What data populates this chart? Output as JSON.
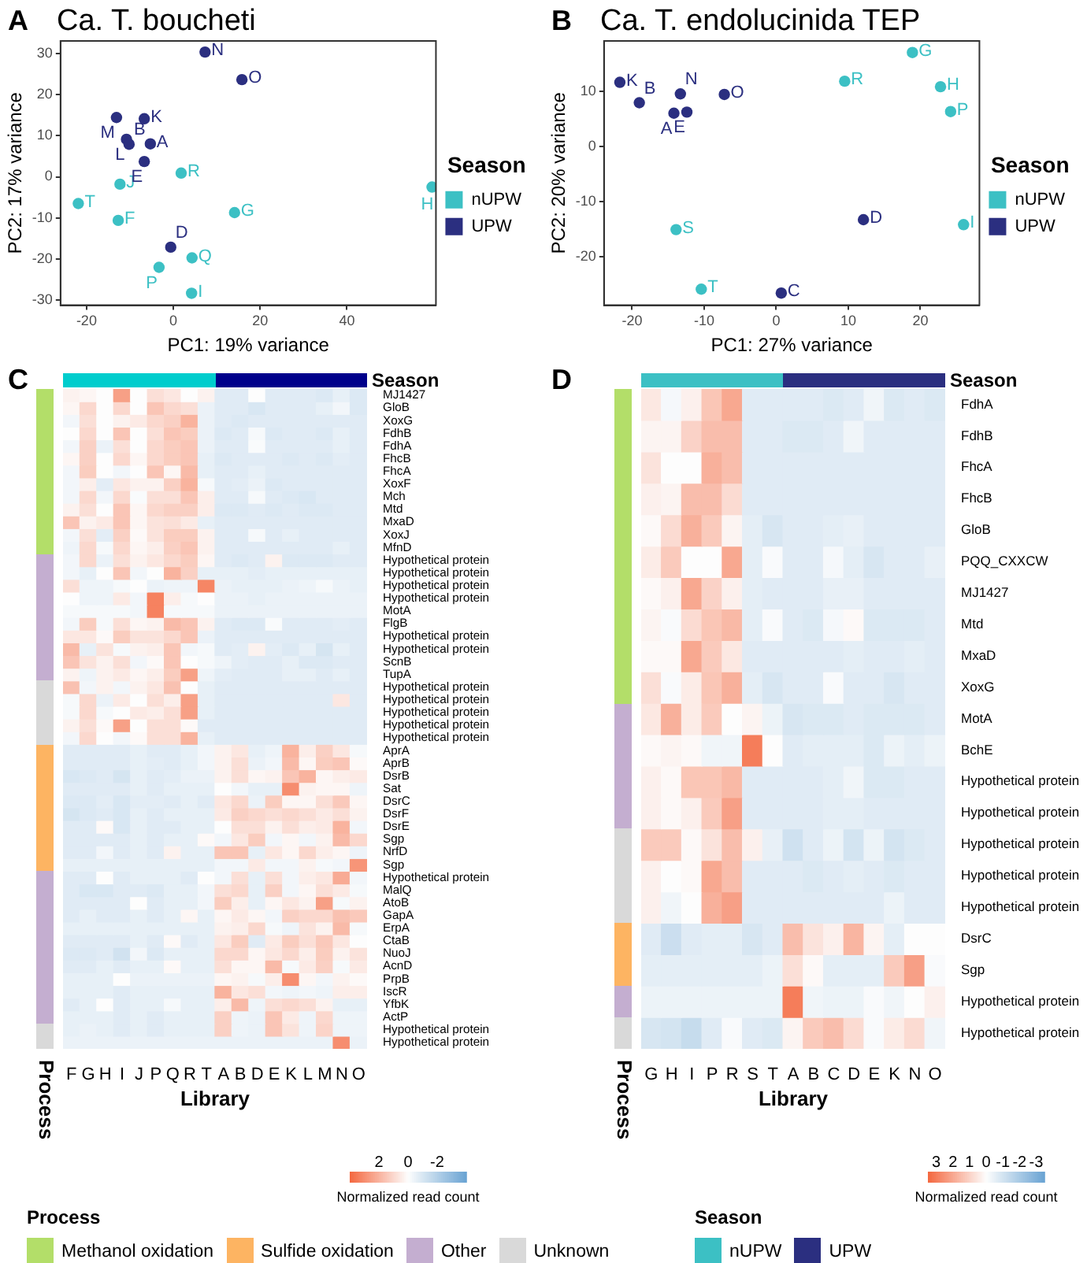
{
  "chart_data": [
    {
      "type": "scatter",
      "title": "Ca. T. boucheti",
      "annotations": [
        "A",
        {
          "text": "R",
          "x": 1.8,
          "y": 0.9
        },
        {
          "text": "J",
          "x": -12.3,
          "y": -1.8
        },
        {
          "text": "T",
          "x": -21.9,
          "y": -6.5
        },
        {
          "text": "F",
          "x": -12.7,
          "y": -10.6
        },
        {
          "text": "G",
          "x": 14.1,
          "y": -8.7
        },
        {
          "text": "H",
          "x": 59.6,
          "y": -2.5
        },
        {
          "text": "Q",
          "x": 4.3,
          "y": -19.7
        },
        {
          "text": "P",
          "x": -3.3,
          "y": -22
        },
        {
          "text": "I",
          "x": 4.2,
          "y": -28.3
        },
        {
          "text": "N",
          "x": 7.3,
          "y": 30.3
        },
        {
          "text": "O",
          "x": 15.8,
          "y": 23.6
        },
        {
          "text": "M",
          "x": -13.1,
          "y": 14.4
        },
        {
          "text": "K",
          "x": -6.7,
          "y": 14.1
        },
        {
          "text": "L",
          "x": -10.8,
          "y": 9.1
        },
        {
          "text": "B",
          "x": -10.2,
          "y": 7.9
        },
        {
          "text": "A",
          "x": -5.3,
          "y": 8
        },
        {
          "text": "E",
          "x": -6.7,
          "y": 3.7
        },
        {
          "text": "D",
          "x": -0.6,
          "y": -17.1
        }
      ],
      "xlabel": "PC1: 19% variance",
      "ylabel": "PC2: 17% variance",
      "legend": "right",
      "legend_title": "Season",
      "xlim": [
        -26,
        60.5
      ],
      "ylim": [
        -31.2,
        33
      ],
      "xticks": [
        -20,
        0,
        20,
        40
      ],
      "yticks": [
        -30,
        -20,
        -10,
        0,
        10,
        20,
        30
      ],
      "marker": "circle",
      "series": [
        {
          "name": "nUPW",
          "color": "#3cc0c4",
          "x": [
            1.8,
            -12.3,
            -21.9,
            -12.7,
            14.1,
            59.6,
            4.3,
            -3.3,
            4.2
          ],
          "values": [
            0.9,
            -1.8,
            -6.5,
            -10.6,
            -8.7,
            -2.5,
            -19.7,
            -22,
            -28.3
          ]
        },
        {
          "name": "UPW",
          "color": "#2b2f80",
          "x": [
            7.3,
            15.8,
            -13.1,
            -6.7,
            -10.8,
            -10.2,
            -5.3,
            -6.7,
            -0.6
          ],
          "values": [
            30.3,
            23.6,
            14.4,
            14.1,
            9.1,
            7.9,
            8,
            3.7,
            -17.1
          ]
        }
      ]
    },
    {
      "type": "scatter",
      "title": "Ca. T. endolucinida TEP",
      "annotations": [
        "B",
        {
          "text": "G",
          "x": 18.9,
          "y": 17
        },
        {
          "text": "R",
          "x": 9.5,
          "y": 11.8
        },
        {
          "text": "H",
          "x": 22.8,
          "y": 10.8
        },
        {
          "text": "P",
          "x": 24.2,
          "y": 6.3
        },
        {
          "text": "I",
          "x": 26,
          "y": -14.2
        },
        {
          "text": "S",
          "x": -13.9,
          "y": -15.1
        },
        {
          "text": "T",
          "x": -10.4,
          "y": -25.9
        },
        {
          "text": "K",
          "x": -21.7,
          "y": 11.6
        },
        {
          "text": "B",
          "x": -19,
          "y": 7.9
        },
        {
          "text": "N",
          "x": -13.3,
          "y": 9.5
        },
        {
          "text": "O",
          "x": -7.2,
          "y": 9.4
        },
        {
          "text": "A",
          "x": -14.2,
          "y": 6
        },
        {
          "text": "E",
          "x": -12.4,
          "y": 6.2
        },
        {
          "text": "D",
          "x": 12.1,
          "y": -13.3
        },
        {
          "text": "C",
          "x": 0.7,
          "y": -26.6
        }
      ],
      "xlabel": "PC1: 27% variance",
      "ylabel": "PC2: 20% variance",
      "legend": "right",
      "legend_title": "Season",
      "xlim": [
        -23.9,
        28.2
      ],
      "ylim": [
        -28.8,
        19.1
      ],
      "xticks": [
        -20,
        -10,
        0,
        10,
        20
      ],
      "yticks": [
        -20,
        -10,
        0,
        10
      ],
      "marker": "circle",
      "series": [
        {
          "name": "nUPW",
          "color": "#3cc0c4",
          "x": [
            18.9,
            9.5,
            22.8,
            24.2,
            26,
            -13.9,
            -10.4
          ],
          "values": [
            17,
            11.8,
            10.8,
            6.3,
            -14.2,
            -15.1,
            -25.9
          ]
        },
        {
          "name": "UPW",
          "color": "#2b2f80",
          "x": [
            -21.7,
            -19,
            -13.3,
            -7.2,
            -14.2,
            -12.4,
            12.1,
            0.7
          ],
          "values": [
            11.6,
            7.9,
            9.5,
            9.4,
            6,
            6.2,
            -13.3,
            -26.6
          ]
        }
      ]
    },
    {
      "type": "heatmap",
      "annotations": [
        "C",
        "Process",
        "Season"
      ],
      "xlabel": "Library",
      "clim": [
        4,
        -4
      ],
      "cticks": [
        2,
        0,
        -2
      ],
      "clabel": "Normalized read count\n(Z-score)",
      "categories": [
        "F",
        "G",
        "H",
        "I",
        "J",
        "P",
        "Q",
        "R",
        "T",
        "A",
        "B",
        "D",
        "E",
        "K",
        "L",
        "M",
        "N",
        "O"
      ],
      "y_categories": [
        "MJ1427",
        "GloB",
        "XoxG",
        "FdhB",
        "FdhA",
        "FhcB",
        "FhcA",
        "XoxF",
        "Mch",
        "Mtd",
        "MxaD",
        "XoxJ",
        "MfnD",
        "Hypothetical protein",
        "Hypothetical protein",
        "Hypothetical protein",
        "Hypothetical protein",
        "MotA",
        "FlgB",
        "Hypothetical protein",
        "Hypothetical protein",
        "ScnB",
        "TupA",
        "Hypothetical protein",
        "Hypothetical protein",
        "Hypothetical protein",
        "Hypothetical protein",
        "Hypothetical protein",
        "AprA",
        "AprB",
        "DsrB",
        "Sat",
        "DsrC",
        "DsrF",
        "DsrE",
        "Sgp",
        "NrfD",
        "Sgp",
        "Hypothetical protein",
        "MalQ",
        "AtoB",
        "GapA",
        "ErpA",
        "CtaB",
        "NuoJ",
        "AcnD",
        "PrpB",
        "IscR",
        "YfbK",
        "ActP",
        "Hypothetical protein",
        "Hypothetical protein"
      ],
      "cells": [
        [
          0.3,
          0.2,
          0,
          2.5,
          0,
          0.8,
          0.6,
          0,
          0.3,
          -0.8,
          -0.8,
          0,
          -0.8,
          -0.8,
          -0.8,
          -0.9,
          -0.6,
          -0.9
        ],
        [
          0.2,
          1,
          0,
          1,
          0,
          1.5,
          1,
          0.8,
          -0.5,
          -0.8,
          -0.8,
          -1,
          -0.8,
          -0.8,
          -0.8,
          -0.6,
          -0.3,
          -0.9
        ],
        [
          -0.3,
          0.8,
          0,
          0.3,
          0.5,
          1,
          1.2,
          2,
          -0.5,
          -0.8,
          -0.9,
          -0.8,
          -0.8,
          -0.8,
          -0.8,
          -0.8,
          -0.8,
          -0.8
        ],
        [
          0,
          1,
          0,
          1.5,
          0,
          0.8,
          1.5,
          1.3,
          -0.5,
          -0.9,
          -0.8,
          -0.2,
          -0.9,
          -0.8,
          -0.8,
          -0.9,
          -0.6,
          -0.8
        ],
        [
          -0.3,
          1.2,
          -0.5,
          0.8,
          0,
          1,
          1.3,
          1.5,
          -0.5,
          -0.8,
          -0.8,
          -0.1,
          -0.8,
          -0.8,
          -0.8,
          -0.8,
          -0.6,
          -0.8
        ],
        [
          0.2,
          1.2,
          0,
          1,
          0.2,
          1,
          1.3,
          1.5,
          -0.6,
          -0.9,
          -0.8,
          -0.8,
          -0.8,
          -0.9,
          -0.8,
          -0.9,
          -0.7,
          -0.8
        ],
        [
          -0.3,
          1.3,
          0,
          -0.3,
          0,
          1.5,
          0.2,
          1.8,
          -0.6,
          -0.8,
          -0.8,
          -0.6,
          -0.8,
          -0.8,
          -0.8,
          -0.8,
          -0.8,
          -0.8
        ],
        [
          -0.3,
          0.4,
          -0.7,
          0.6,
          0.3,
          0.3,
          1.2,
          2,
          -0.2,
          -0.8,
          -0.7,
          -0.5,
          -0.9,
          -0.8,
          -0.8,
          -0.8,
          -0.8,
          -0.8
        ],
        [
          -0.3,
          1,
          -0.3,
          1,
          -0.1,
          0.8,
          0.8,
          1.5,
          0.4,
          -0.8,
          -0.8,
          -0.2,
          -0.8,
          -0.9,
          -1,
          -0.8,
          -0.8,
          -0.8
        ],
        [
          0.3,
          0.8,
          0,
          1.5,
          0.2,
          1,
          1.2,
          1.2,
          0.4,
          -0.9,
          -0.9,
          -0.8,
          -0.9,
          -0.8,
          -0.9,
          -0.9,
          -0.8,
          -0.8
        ],
        [
          1.5,
          0.3,
          0.5,
          1.5,
          0.2,
          0.7,
          0.8,
          0.5,
          -0.6,
          -0.8,
          -0.8,
          -0.8,
          -0.8,
          -0.8,
          -0.8,
          -0.8,
          -0.8,
          -0.8
        ],
        [
          -0.3,
          0.8,
          -0.7,
          1.2,
          0.1,
          0.7,
          1.3,
          1.3,
          0.3,
          -0.8,
          -0.8,
          -0.2,
          -0.8,
          -0.6,
          -0.8,
          -0.8,
          -0.8,
          -0.8
        ],
        [
          -0.4,
          1,
          -0.2,
          1,
          0.2,
          0.4,
          1.2,
          1.5,
          0.3,
          -0.8,
          -0.8,
          -0.8,
          -0.8,
          -0.8,
          -0.8,
          -0.8,
          -0.6,
          -0.8
        ],
        [
          -0.3,
          1,
          -0.5,
          0.8,
          0.3,
          0.6,
          1,
          1.3,
          0.2,
          -0.8,
          -0.9,
          -0.8,
          0.3,
          -0.9,
          -0.9,
          -0.9,
          -0.8,
          -0.8
        ],
        [
          -0.3,
          -0.6,
          0,
          1.5,
          -0.3,
          0,
          2,
          1.2,
          -0.6,
          -0.6,
          -0.6,
          -0.7,
          -0.6,
          -0.6,
          -0.6,
          -0.6,
          -0.6,
          -0.6
        ],
        [
          0.8,
          -0.4,
          -0.4,
          -0.2,
          0,
          -0.5,
          -0.4,
          -0.4,
          3.2,
          -0.5,
          -0.6,
          -0.6,
          -0.6,
          -0.5,
          -0.4,
          -0.2,
          -0.5,
          -0.6
        ],
        [
          0,
          -0.4,
          -0.4,
          0.5,
          -0.3,
          3.3,
          0.4,
          -0.2,
          0,
          -0.5,
          -0.5,
          -0.6,
          -0.5,
          -0.5,
          -0.5,
          -0.5,
          -0.5,
          -0.5
        ],
        [
          -0.2,
          -0.2,
          -0.2,
          -0.2,
          -0.3,
          3.3,
          -0.2,
          -0.2,
          -0.2,
          -0.5,
          -0.5,
          -0.5,
          -0.5,
          -0.5,
          -0.5,
          -0.5,
          -0.5,
          -0.5
        ],
        [
          -0.3,
          1.3,
          -0.2,
          0.8,
          0.2,
          0.3,
          1.8,
          1.5,
          0.3,
          -0.8,
          -0.9,
          -0.9,
          -0.1,
          -0.8,
          -0.8,
          -0.8,
          -0.7,
          -0.8
        ],
        [
          0.6,
          0.6,
          0.1,
          1.3,
          0.7,
          0.7,
          1,
          1.5,
          -0.5,
          -0.8,
          -0.8,
          -0.8,
          -0.8,
          -0.8,
          -0.8,
          -0.8,
          -0.8,
          -0.8
        ],
        [
          1.8,
          -0.6,
          0.7,
          -0.2,
          0.3,
          0.4,
          1.5,
          -0.3,
          -0.2,
          -0.8,
          -0.7,
          0.3,
          -0.7,
          -0.9,
          -0.6,
          -1.1,
          -0.6,
          -0.8
        ],
        [
          1.5,
          0.7,
          0.3,
          0.8,
          -0.3,
          0.1,
          1.5,
          0,
          -0.2,
          -0.4,
          -0.7,
          -0.8,
          -0.8,
          -0.6,
          -0.9,
          -0.9,
          -0.8,
          -0.8
        ],
        [
          0.3,
          -0.4,
          0.3,
          0.5,
          0.2,
          0.4,
          1.3,
          2.5,
          -0.4,
          -0.7,
          -0.8,
          -0.8,
          -0.8,
          -0.6,
          -0.6,
          -0.8,
          -0.6,
          -0.8
        ],
        [
          1.6,
          -0.3,
          0.3,
          -0.3,
          0.3,
          0.6,
          1.6,
          0,
          -0.6,
          -0.8,
          -0.8,
          -0.8,
          -0.8,
          -0.8,
          -0.8,
          -0.8,
          -0.8,
          -0.8
        ],
        [
          -0.2,
          1,
          -0.5,
          0.5,
          0,
          0.8,
          0.4,
          2.5,
          -0.6,
          -0.8,
          -0.8,
          -0.8,
          -0.8,
          -0.8,
          -0.8,
          -0.8,
          0.6,
          -0.8
        ],
        [
          -0.2,
          1,
          -0.2,
          0,
          0.5,
          0.4,
          0.8,
          2.5,
          -0.6,
          -0.8,
          -0.8,
          -0.8,
          -0.8,
          -0.8,
          -0.8,
          -0.8,
          -0.8,
          -0.8
        ],
        [
          0.3,
          0.8,
          0.1,
          2.5,
          0,
          0.8,
          0.8,
          0.1,
          -0.8,
          -0.8,
          -0.8,
          -0.8,
          -0.8,
          -0.8,
          -0.8,
          -0.8,
          -0.8,
          -0.8
        ],
        [
          -0.3,
          1,
          0,
          -0.3,
          0.1,
          0.8,
          0.8,
          2,
          -0.6,
          -0.8,
          -0.8,
          -0.8,
          -0.8,
          -0.8,
          -0.8,
          -0.8,
          -0.8,
          -0.8
        ],
        [
          -0.8,
          -0.8,
          -0.8,
          -0.8,
          -0.6,
          -0.8,
          -0.8,
          -0.6,
          -0.3,
          0.3,
          0.6,
          -0.6,
          -0.4,
          2,
          0.4,
          1.2,
          0.6,
          -0.2
        ],
        [
          -0.8,
          -0.8,
          -0.8,
          -0.8,
          -0.6,
          -0.7,
          -0.8,
          -0.6,
          -0.3,
          0.3,
          0.8,
          -0.5,
          -0.3,
          1.8,
          0.2,
          1.3,
          1.5,
          0.1
        ],
        [
          -1,
          -0.9,
          -0.8,
          -1.1,
          -0.6,
          -0.8,
          -0.7,
          -0.5,
          -0.5,
          0.3,
          0.8,
          0.2,
          0.3,
          1.5,
          2,
          0.2,
          0.4,
          0.5
        ],
        [
          -0.8,
          -0.8,
          -0.8,
          -0.8,
          -0.6,
          -0.8,
          -0.6,
          -0.6,
          -0.6,
          0,
          -0.3,
          -0.6,
          -0.6,
          3,
          0.3,
          0.2,
          0.2,
          -0.4
        ],
        [
          -0.9,
          -0.9,
          -0.7,
          -1,
          -0.7,
          -0.7,
          -0.8,
          -0.6,
          -0.8,
          0.6,
          1,
          -0.5,
          1.3,
          0.2,
          0.2,
          0.8,
          1.4,
          0.2
        ],
        [
          -1.1,
          -0.9,
          -0.8,
          -1,
          -0.6,
          -0.8,
          -0.6,
          -0.6,
          -0.6,
          0.5,
          1.2,
          1,
          0.8,
          1,
          0.8,
          0.5,
          0.8,
          0.3
        ],
        [
          -0.8,
          -0.8,
          0.1,
          -1,
          -0.6,
          -0.8,
          -0.8,
          -0.6,
          -0.6,
          0,
          0.8,
          0.8,
          0.3,
          0.8,
          0.4,
          0.5,
          2,
          -0.3
        ],
        [
          -0.8,
          -0.8,
          -0.8,
          -0.8,
          -0.6,
          -0.8,
          -0.6,
          -0.6,
          0.1,
          -0.3,
          0.6,
          1.3,
          -0.3,
          0.2,
          -0.3,
          0.3,
          1.8,
          1
        ],
        [
          -0.8,
          -0.8,
          -0.3,
          -0.8,
          -0.6,
          -0.8,
          0.3,
          -0.6,
          -0.6,
          1.5,
          1.5,
          -0.6,
          0.6,
          0.2,
          1,
          0.4,
          0.2,
          -0.4
        ],
        [
          -0.6,
          -0.6,
          -0.6,
          -0.6,
          -0.6,
          -0.6,
          -0.6,
          -0.6,
          -0.6,
          -0.3,
          -0.3,
          0.5,
          -0.3,
          -0.3,
          0.3,
          -0.2,
          -0.3,
          2.8
        ],
        [
          -0.8,
          -0.8,
          0,
          -0.8,
          -0.6,
          -0.6,
          -0.6,
          -0.8,
          0,
          -0.3,
          0.8,
          -0.6,
          0.8,
          -0.3,
          0.4,
          0.6,
          2.2,
          -0.3
        ],
        [
          -0.8,
          -1,
          -1,
          -0.8,
          -0.8,
          -0.9,
          -0.6,
          -0.6,
          -0.3,
          0.8,
          1,
          -0.6,
          1.2,
          -0.3,
          0.2,
          0.8,
          0.5,
          -0.2
        ],
        [
          -0.8,
          -0.8,
          -0.8,
          -0.8,
          0,
          -0.8,
          -0.6,
          -0.6,
          -0.3,
          1.3,
          0.4,
          -0.6,
          0.2,
          0.6,
          0.3,
          2.5,
          -0.2,
          0.3
        ],
        [
          -0.8,
          -0.6,
          -0.8,
          -0.8,
          -0.6,
          -0.8,
          -0.6,
          0.2,
          -0.6,
          0.2,
          0.5,
          0.2,
          -0.3,
          1.2,
          1,
          1,
          1.6,
          1.4
        ],
        [
          -0.6,
          -0.6,
          -0.6,
          -0.6,
          -0.6,
          -0.6,
          -0.6,
          -0.6,
          -0.6,
          0.3,
          0.4,
          1,
          -0.2,
          -0.4,
          0.7,
          0.3,
          1.8,
          -0.2
        ],
        [
          -0.8,
          -0.8,
          -0.8,
          -0.8,
          -0.6,
          -0.8,
          0.1,
          -0.8,
          -0.6,
          0.6,
          1.3,
          -0.8,
          0.5,
          1.3,
          0.8,
          1.4,
          0.6,
          0
        ],
        [
          -0.9,
          -0.9,
          -0.8,
          -1.2,
          -0.3,
          -0.9,
          -0.6,
          -0.6,
          -0.6,
          1,
          1,
          0.2,
          0.6,
          1,
          0.4,
          1.3,
          0.3,
          0.7
        ],
        [
          -0.8,
          -0.8,
          -0.6,
          -0.8,
          -0.6,
          -0.6,
          0.1,
          -0.6,
          -0.6,
          0.8,
          0.2,
          0.2,
          1.8,
          -0.2,
          0.5,
          1.2,
          -0.2,
          0.5
        ],
        [
          -0.6,
          -0.6,
          -0.6,
          0,
          -0.5,
          -0.5,
          -0.5,
          -0.5,
          -0.5,
          0.2,
          0.3,
          -0.2,
          0.4,
          3,
          0.2,
          -0.3,
          0.3,
          0.1
        ],
        [
          -0.6,
          -0.6,
          -0.6,
          -0.8,
          -0.6,
          -0.6,
          -0.6,
          -0.6,
          -0.6,
          2,
          0.6,
          0.8,
          -0.3,
          -0.4,
          -0.3,
          -0.4,
          0.4,
          0.4
        ],
        [
          -0.8,
          -0.6,
          0,
          -0.8,
          -0.6,
          -0.6,
          -0.2,
          -0.6,
          -0.6,
          0.4,
          1.8,
          -0.4,
          0.8,
          1,
          0.8,
          0.3,
          -0.6,
          -0.6
        ],
        [
          -0.6,
          -0.6,
          -0.6,
          -0.8,
          -0.6,
          -0.8,
          -0.6,
          -0.6,
          -0.6,
          1.2,
          -0.4,
          -0.5,
          1.5,
          0.5,
          -0.4,
          1,
          -0.4,
          -0.4
        ],
        [
          -0.6,
          -0.5,
          -0.6,
          -0.8,
          -0.6,
          -0.8,
          -0.6,
          -0.6,
          -0.6,
          1.2,
          -0.4,
          -0.5,
          1.5,
          0.7,
          -0.4,
          1.1,
          -0.4,
          -0.4
        ],
        [
          -0.5,
          -0.5,
          -0.5,
          -0.5,
          -0.5,
          -0.5,
          -0.5,
          -0.5,
          -0.5,
          -0.5,
          -0.5,
          -0.5,
          -0.5,
          -0.5,
          -0.5,
          -0.5,
          3,
          -0.5
        ]
      ]
    },
    {
      "type": "heatmap",
      "annotations": [
        "D",
        "Process",
        "Season"
      ],
      "xlabel": "Library",
      "clim": [
        3.5,
        -3.5
      ],
      "cticks": [
        3,
        2,
        1,
        0,
        -1,
        -2,
        -3
      ],
      "clabel": "Normalized read count\n(Z-score)",
      "categories": [
        "G",
        "H",
        "I",
        "P",
        "R",
        "S",
        "T",
        "A",
        "B",
        "C",
        "D",
        "E",
        "K",
        "N",
        "O"
      ],
      "y_categories": [
        "FdhA",
        "FdhB",
        "FhcA",
        "FhcB",
        "GloB",
        "PQQ_CXXCW",
        "MJ1427",
        "Mtd",
        "MxaD",
        "XoxG",
        "MotA",
        "BchE",
        "Hypothetical protein",
        "Hypothetical protein",
        "Hypothetical protein",
        "Hypothetical protein",
        "Hypothetical protein",
        "DsrC",
        "Sgp",
        "Hypothetical protein",
        "Hypothetical protein"
      ],
      "cells": [
        [
          0.5,
          -0.2,
          0.3,
          1.3,
          2,
          -0.7,
          -0.7,
          -0.7,
          -0.7,
          -0.8,
          -0.7,
          -0.3,
          -0.8,
          -0.7,
          -0.8
        ],
        [
          0.2,
          0.2,
          1,
          1.5,
          1.5,
          -0.7,
          -0.7,
          -0.8,
          -0.8,
          -0.7,
          -0.3,
          -0.7,
          -0.7,
          -0.7,
          -0.7
        ],
        [
          0.6,
          0,
          0,
          1.8,
          1.5,
          -0.7,
          -0.7,
          -0.7,
          -0.7,
          -0.7,
          -0.7,
          -0.7,
          -0.7,
          -0.7,
          -0.7
        ],
        [
          0.3,
          0.2,
          1.5,
          1.5,
          0.8,
          -0.7,
          -0.7,
          -0.7,
          -0.7,
          -0.7,
          -0.7,
          -0.7,
          -0.7,
          -0.7,
          -0.7
        ],
        [
          0.1,
          0.8,
          1.8,
          1.2,
          0.2,
          -0.6,
          -0.9,
          -0.7,
          -0.7,
          -0.6,
          -0.5,
          -0.7,
          -0.7,
          -0.7,
          -0.7
        ],
        [
          0.4,
          1.2,
          0,
          0,
          2,
          -0.6,
          -0.1,
          -0.7,
          -0.7,
          -0.2,
          -0.6,
          -0.9,
          -0.7,
          -0.7,
          -0.5
        ],
        [
          0.1,
          0.3,
          2,
          1,
          0.3,
          -0.6,
          -0.7,
          -0.7,
          -0.7,
          -0.5,
          -0.5,
          -0.7,
          -0.7,
          -0.7,
          -0.7
        ],
        [
          0.2,
          -0.1,
          0.8,
          1.3,
          1.6,
          -0.6,
          -0.1,
          -0.7,
          -0.8,
          -0.2,
          0.1,
          -0.8,
          -0.8,
          -0.8,
          -0.7
        ],
        [
          0.1,
          0.1,
          2,
          1.2,
          0.5,
          -0.7,
          -0.7,
          -0.7,
          -0.7,
          -0.7,
          -0.6,
          -0.7,
          -0.7,
          -0.6,
          -0.7
        ],
        [
          0.7,
          -0.1,
          0.4,
          1.3,
          1.8,
          -0.6,
          -0.9,
          -0.7,
          -0.7,
          -0.1,
          -0.7,
          -0.7,
          -0.9,
          -0.7,
          -0.7
        ],
        [
          0.5,
          1.8,
          0.4,
          1.2,
          0,
          0.2,
          -0.4,
          -0.9,
          -0.8,
          -0.8,
          -0.7,
          -0.8,
          -0.8,
          -0.8,
          -0.7
        ],
        [
          0.1,
          0.2,
          0.1,
          -0.3,
          -0.3,
          3,
          0,
          -0.7,
          -0.6,
          -0.6,
          -0.6,
          -0.8,
          -0.4,
          -0.6,
          -0.4
        ],
        [
          0.3,
          0.1,
          1.3,
          1.3,
          1.6,
          -0.7,
          -0.7,
          -0.7,
          -0.7,
          -0.6,
          -0.3,
          -0.8,
          -0.8,
          -0.7,
          -0.7
        ],
        [
          0.3,
          0.1,
          0.3,
          1.2,
          2.2,
          -0.7,
          -0.7,
          -0.7,
          -0.7,
          -0.6,
          -0.6,
          -0.7,
          -0.7,
          -0.7,
          -0.7
        ],
        [
          1.2,
          1.2,
          0.1,
          0.6,
          1.5,
          0.3,
          -0.5,
          -1.1,
          -0.7,
          -0.4,
          -1,
          -0.4,
          -1,
          -0.8,
          -0.7
        ],
        [
          0.3,
          0,
          0.1,
          2,
          1.5,
          -0.7,
          -0.7,
          -0.7,
          -0.8,
          -0.7,
          -0.6,
          -0.7,
          -0.8,
          -0.7,
          -0.7
        ],
        [
          0.3,
          -0.3,
          0,
          1.8,
          2.2,
          -0.7,
          -0.7,
          -0.7,
          -0.7,
          -0.7,
          -0.7,
          -0.7,
          -0.4,
          -0.7,
          -0.7
        ],
        [
          -0.7,
          -1.2,
          -0.7,
          -0.6,
          -0.6,
          -0.9,
          -0.7,
          1.5,
          0.6,
          0.3,
          1.7,
          0.2,
          -0.6,
          0,
          0
        ],
        [
          -0.6,
          -0.6,
          -0.6,
          -0.6,
          -0.6,
          -0.6,
          -0.4,
          0.7,
          0.1,
          -0.6,
          -0.6,
          -0.6,
          1.2,
          2.2,
          -0.1
        ],
        [
          -0.4,
          -0.4,
          -0.4,
          -0.4,
          -0.4,
          -0.4,
          -0.4,
          3,
          -0.3,
          -0.4,
          -0.4,
          -0.1,
          -0.3,
          0,
          0.3
        ],
        [
          -0.9,
          -1,
          -1.3,
          -0.7,
          -0.1,
          -0.7,
          -0.8,
          0.2,
          1.2,
          1.5,
          0.8,
          -0.1,
          0.4,
          0.8,
          -0.3
        ]
      ]
    },
    {
      "type": "other",
      "annotations": [
        "Process",
        "Methanol oxidation",
        "Sulfide oxidation",
        "Other",
        "Unknown"
      ]
    },
    {
      "type": "other",
      "annotations": [
        "Season",
        "nUPW",
        "UPW"
      ]
    }
  ]
}
